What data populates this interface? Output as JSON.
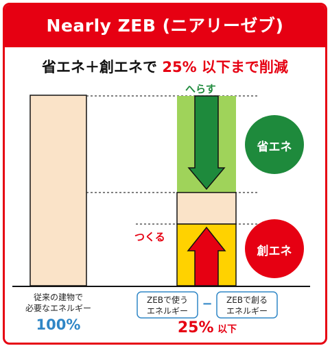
{
  "header": {
    "title": "Nearly ZEB (ニアリーゼブ)"
  },
  "subtitle": {
    "prefix": "省エネ＋創エネで ",
    "highlight": "25% 以下まで削減"
  },
  "diagram": {
    "reduce_label": "へらす",
    "create_label": "つくる",
    "saving_badge": "省エネ",
    "creation_badge": "創エネ",
    "conventional_label_line1": "従来の建物で",
    "conventional_label_line2": "必要なエネルギー",
    "conventional_percent": "100%",
    "used_box_line1": "ZEBで使う",
    "used_box_line2": "エネルギー",
    "minus_sign": "−",
    "created_box_line1": "ZEBで創る",
    "created_box_line2": "エネルギー",
    "result_percent": "25%",
    "result_suffix": "以下"
  },
  "colors": {
    "red": "#e60012",
    "green": "#1e8a3c",
    "light_green": "#9fd35a",
    "beige": "#fae3c8",
    "yellow": "#ffd200",
    "blue": "#2f86c6"
  }
}
